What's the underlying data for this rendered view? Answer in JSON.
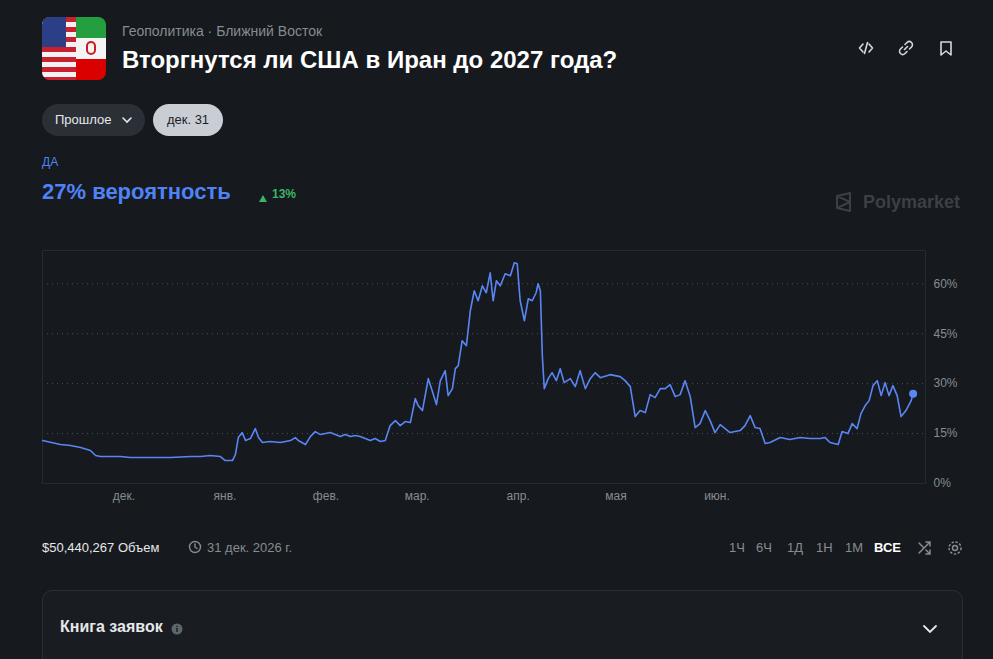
{
  "header": {
    "breadcrumb": "Геополитика · Ближний Восток",
    "title": "Вторгнутся ли США в Иран до 2027 года?"
  },
  "controls": {
    "period": "Прошлое",
    "date": "дек. 31"
  },
  "outcome": {
    "label": "ДА",
    "probability": "27% вероятность",
    "change": "13%"
  },
  "watermark": "Polymarket",
  "chart_data": {
    "type": "line",
    "color": "#5a86f5",
    "grid": true,
    "x": [
      0,
      5.5,
      8.6,
      11.7,
      14.7,
      16.3,
      17.8,
      23.9,
      27,
      33.1,
      39.3,
      45.4,
      48.5,
      51.5,
      54.6,
      56.1,
      58.3,
      59.2,
      60.1,
      61.3,
      62.3,
      63.8,
      65.3,
      66.3,
      67.5,
      69.9,
      73,
      76.1,
      77.6,
      78.5,
      80.7,
      82.2,
      83.7,
      85.3,
      88.3,
      91.4,
      92.9,
      94.5,
      96,
      97.5,
      100.6,
      102.1,
      103.7,
      105.2,
      106.7,
      108.3,
      109.8,
      111.3,
      112.9,
      114.4,
      115.3,
      116.6,
      118.4,
      119.6,
      120.9,
      122.1,
      123.6,
      124.5,
      125.8,
      126.7,
      127.6,
      128.8,
      130.1,
      131.3,
      132.5,
      133.7,
      135,
      136.2,
      137.4,
      138.3,
      139.3,
      140.5,
      142,
      143.6,
      144.8,
      145.7,
      146.6,
      147.9,
      149.1,
      150.3,
      151.5,
      152.1,
      152.8,
      153.4,
      154,
      155.2,
      156.4,
      157.7,
      158.9,
      160.1,
      162,
      163.5,
      165,
      166.6,
      168.1,
      169.6,
      171.2,
      174.2,
      177.3,
      178.8,
      180.4,
      181.9,
      183.4,
      185,
      186.5,
      188,
      189.6,
      191.1,
      192.6,
      194.2,
      195.7,
      197.2,
      198.8,
      200.3,
      201.8,
      203.4,
      204.9,
      206.4,
      208,
      209.5,
      211,
      214.1,
      215.6,
      217.2,
      218.7,
      220.2,
      221.8,
      223.3,
      226.4,
      229.4,
      232.5,
      235.6,
      238.7,
      240.2,
      241.7,
      244.2,
      245.4,
      247.2,
      248.5,
      250,
      251.2,
      252.5,
      253.7,
      254.9,
      256.2,
      257.4,
      258.6,
      259.8,
      261,
      262.3,
      263.5,
      265,
      266.6,
      267.2
    ],
    "values": [
      12.9,
      11.7,
      11.4,
      10.8,
      9.9,
      8.4,
      8.1,
      8.1,
      7.8,
      7.8,
      7.8,
      8.1,
      8.1,
      8.4,
      8.1,
      6.9,
      6.9,
      8.7,
      13.8,
      15.3,
      12.9,
      13.5,
      16.5,
      13.8,
      12.3,
      12.6,
      12.3,
      12.9,
      13.8,
      12.9,
      11.7,
      14.1,
      15.6,
      14.7,
      15.3,
      14.1,
      14.7,
      14.1,
      14.4,
      14.1,
      12.9,
      13.5,
      12.6,
      12.9,
      17.4,
      18.9,
      17.4,
      18.6,
      18.3,
      25.5,
      23.4,
      21.9,
      31.5,
      27.9,
      23.7,
      30.9,
      33.9,
      26.4,
      28.5,
      34.5,
      35.4,
      42.9,
      41.4,
      51.9,
      57.9,
      54.9,
      59.4,
      57.3,
      63.3,
      54.9,
      60.9,
      59.4,
      63,
      62.4,
      66.3,
      66,
      54.9,
      48.9,
      55.5,
      54.9,
      57.3,
      60,
      57.9,
      38.4,
      28.5,
      31.5,
      33.3,
      30.9,
      34.5,
      30.3,
      31.5,
      29.1,
      33.9,
      28.5,
      31.5,
      33.3,
      31.8,
      32.7,
      32.1,
      30.9,
      29.1,
      20.1,
      21.9,
      21.3,
      26.7,
      25.8,
      28.5,
      28.5,
      29.7,
      26.1,
      26.7,
      30.9,
      26.1,
      16.8,
      18,
      21.9,
      18.9,
      15.3,
      17.7,
      16.5,
      15.3,
      15.9,
      17.4,
      20.4,
      16.8,
      16.5,
      12,
      12.3,
      13.8,
      13.2,
      13.8,
      13.5,
      13.5,
      13.8,
      12.3,
      11.7,
      15.6,
      15,
      18,
      16.5,
      21,
      23.4,
      24.9,
      29.4,
      30.9,
      26.4,
      30.3,
      26.4,
      29.4,
      26.4,
      20.1,
      21.9,
      24.9,
      27
    ],
    "xlim": [
      0,
      271
    ],
    "xticks": [
      {
        "value": 25,
        "label": "дек."
      },
      {
        "value": 56,
        "label": "янв."
      },
      {
        "value": 87,
        "label": "фев."
      },
      {
        "value": 115,
        "label": "мар."
      },
      {
        "value": 146,
        "label": "апр."
      },
      {
        "value": 176,
        "label": "мая"
      },
      {
        "value": 207,
        "label": "июн."
      }
    ],
    "ylim": [
      0,
      70
    ],
    "yticks": [
      {
        "value": 0,
        "label": "0%"
      },
      {
        "value": 15,
        "label": "15%"
      },
      {
        "value": 30,
        "label": "30%"
      },
      {
        "value": 45,
        "label": "45%"
      },
      {
        "value": 60,
        "label": "60%"
      }
    ]
  },
  "footer": {
    "volume": "$50,440,267 Объем",
    "end_date": "31 дек. 2026 г.",
    "ranges": [
      "1Ч",
      "6Ч",
      "1Д",
      "1Н",
      "1М",
      "ВСЕ"
    ],
    "active_range": "ВСЕ"
  },
  "order_book": "Книга заявок"
}
